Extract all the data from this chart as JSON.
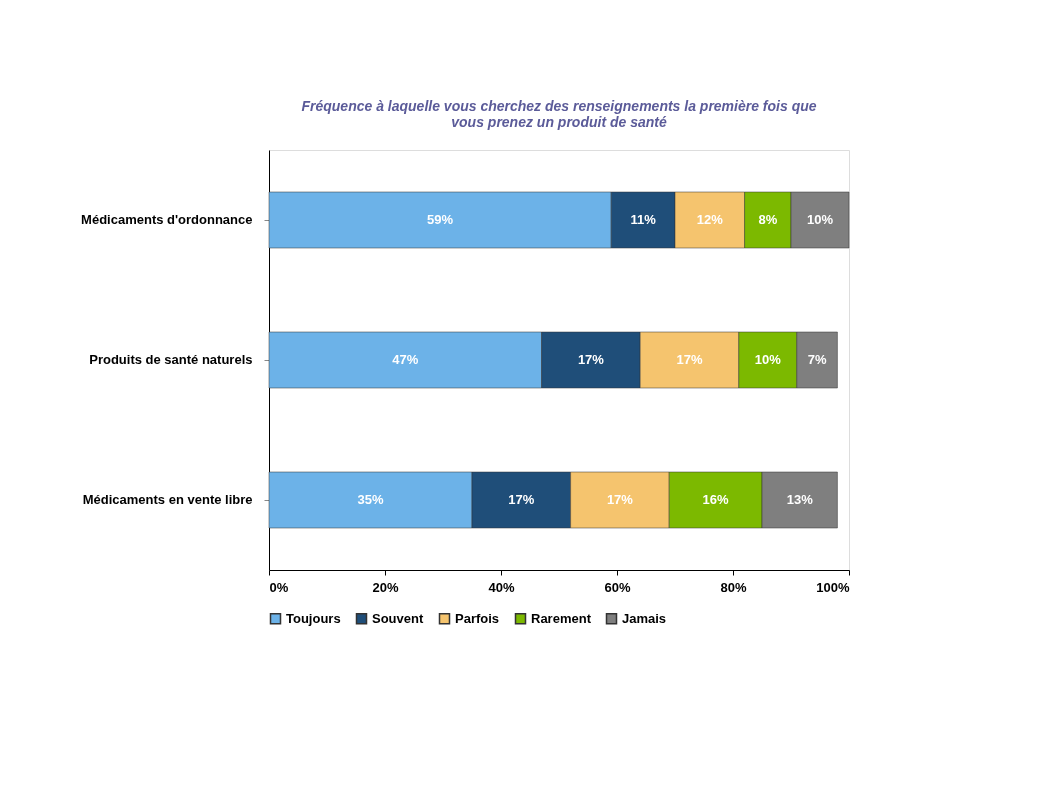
{
  "chart_data": {
    "type": "bar",
    "orientation": "horizontal",
    "stacked": true,
    "title": "Fréquence à laquelle vous cherchez des renseignements la première fois que\nvous prenez un produit de santé",
    "categories": [
      "Médicaments d'ordonnance",
      "Produits de santé naturels",
      "Médicaments en vente libre"
    ],
    "series": [
      {
        "name": "Toujours",
        "color": "#6cb2e8",
        "values": [
          59,
          47,
          35
        ]
      },
      {
        "name": "Souvent",
        "color": "#1f4e79",
        "values": [
          11,
          17,
          17
        ]
      },
      {
        "name": "Parfois",
        "color": "#f5c46e",
        "values": [
          12,
          17,
          17
        ]
      },
      {
        "name": "Rarement",
        "color": "#7cb900",
        "values": [
          8,
          10,
          16
        ]
      },
      {
        "name": "Jamais",
        "color": "#7f7f7f",
        "values": [
          10,
          7,
          13
        ]
      }
    ],
    "xlim": [
      0,
      100
    ],
    "xticks": [
      {
        "value": 0,
        "label": "0%"
      },
      {
        "value": 20,
        "label": "20%"
      },
      {
        "value": 40,
        "label": "40%"
      },
      {
        "value": 60,
        "label": "60%"
      },
      {
        "value": 80,
        "label": "80%"
      },
      {
        "value": 100,
        "label": "100%"
      }
    ],
    "value_labels": [
      [
        "59%",
        "47%",
        "35%"
      ],
      [
        "11%",
        "17%",
        "17%"
      ],
      [
        "12%",
        "17%",
        "17%"
      ],
      [
        "8%",
        "10%",
        "16%"
      ],
      [
        "10%",
        "7%",
        "13%"
      ]
    ],
    "legend": "bottom",
    "grid": false
  }
}
